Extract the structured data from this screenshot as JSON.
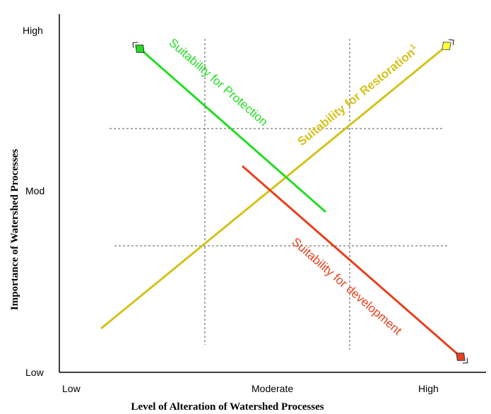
{
  "axes": {
    "y_title": "Importance of Watershed Processes",
    "x_title": "Level of Alteration of Watershed Processes",
    "y_ticks": [
      "High",
      "Mod",
      "Low"
    ],
    "x_ticks": [
      "Low",
      "Moderate",
      "High"
    ]
  },
  "lines": [
    {
      "label": "Suitability for Protection",
      "color": "#22dd22",
      "marker": "green-diamond-arrow"
    },
    {
      "label": "Suitability for Restoration",
      "superscript": "1",
      "color": "#d4c21a",
      "marker": "yellow-diamond-arrow"
    },
    {
      "label": "Suitability for development",
      "color": "#e8401c",
      "marker": "red-diamond-arrow"
    }
  ]
}
